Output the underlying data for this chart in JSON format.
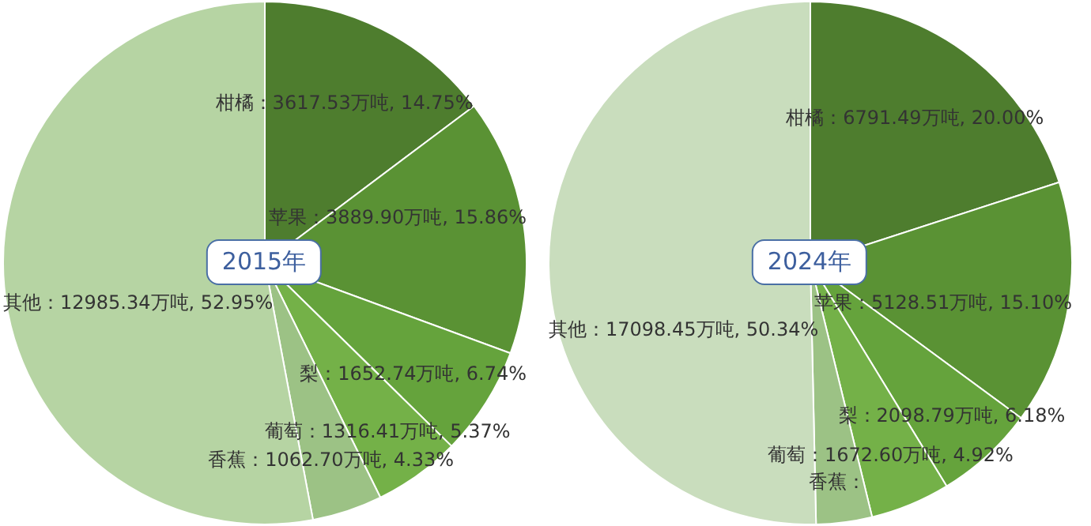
{
  "chart_data": [
    {
      "type": "pie",
      "title": "2015年",
      "categories": [
        "柑橘",
        "苹果",
        "梨",
        "葡萄",
        "香蕉",
        "其他"
      ],
      "values": [
        3617.53,
        3889.9,
        1652.74,
        1316.41,
        1062.7,
        12985.34
      ],
      "value_labels": [
        "：3617.53万吨, 14.75%",
        "：3889.90万吨, 15.86%",
        "：1652.74万吨, 6.74%",
        "：1316.41万吨, 5.37%",
        "：1062.70万吨, 4.33%",
        "：12985.34万吨, 52.95%"
      ],
      "colors": [
        "#4e7d2e",
        "#5a9234",
        "#65a33c",
        "#74b148",
        "#9cc285",
        "#b6d4a3"
      ],
      "legend": false
    },
    {
      "type": "pie",
      "title": "2024年",
      "categories": [
        "柑橘",
        "苹果",
        "梨",
        "葡萄",
        "香蕉",
        "其他"
      ],
      "values": [
        6791.49,
        5128.51,
        2098.79,
        1672.6,
        1170,
        17098.45
      ],
      "value_labels": [
        "：6791.49万吨, 20.00%",
        "：5128.51万吨, 15.10%",
        "：2098.79万吨, 6.18%",
        "：1672.60万吨, 4.92%",
        "：",
        "：17098.45万吨, 50.34%"
      ],
      "colors": [
        "#4e7d2e",
        "#5a9234",
        "#65a33c",
        "#74b148",
        "#9cc285",
        "#c9ddbd"
      ],
      "legend": false
    }
  ]
}
